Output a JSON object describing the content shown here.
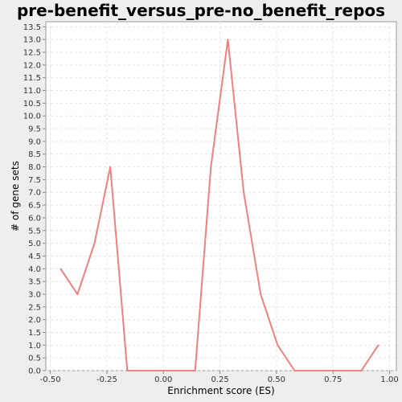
{
  "chart_data": {
    "type": "line",
    "title": "pre-benefit_versus_pre-no_benefit_repos",
    "xlabel": "Enrichment score (ES)",
    "ylabel": "# of gene sets",
    "xlim": [
      -0.52,
      1.03
    ],
    "ylim": [
      0,
      13.7
    ],
    "x_ticks": [
      "-0.50",
      "-0.25",
      "0.00",
      "0.25",
      "0.50",
      "0.75",
      "1.00"
    ],
    "y_ticks": [
      "0.0",
      "0.5",
      "1.0",
      "1.5",
      "2.0",
      "2.5",
      "3.0",
      "3.5",
      "4.0",
      "4.5",
      "5.0",
      "5.5",
      "6.0",
      "6.5",
      "7.0",
      "7.5",
      "8.0",
      "8.5",
      "9.0",
      "9.5",
      "10.0",
      "10.5",
      "11.0",
      "11.5",
      "12.0",
      "12.5",
      "13.0",
      "13.5"
    ],
    "grid": true,
    "series": [
      {
        "color": "#f08080",
        "x": [
          -0.455,
          -0.38,
          -0.305,
          -0.235,
          -0.16,
          -0.085,
          -0.01,
          0.065,
          0.14,
          0.21,
          0.285,
          0.355,
          0.43,
          0.505,
          0.58,
          0.655,
          0.73,
          0.805,
          0.875,
          0.95
        ],
        "y": [
          4,
          3,
          5,
          8,
          0,
          0,
          0,
          0,
          0,
          8,
          13,
          7,
          3,
          1,
          0,
          0,
          0,
          0,
          0,
          1
        ]
      }
    ]
  }
}
